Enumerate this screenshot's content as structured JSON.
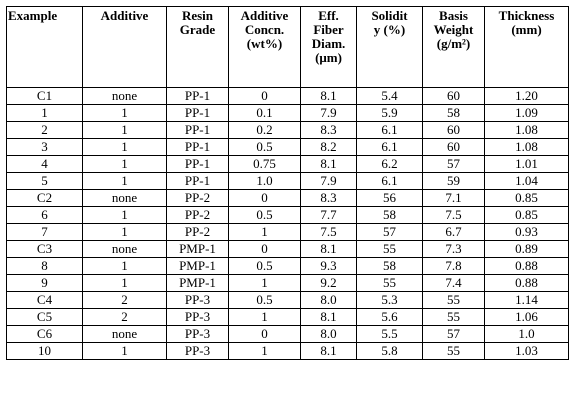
{
  "table": {
    "headers": [
      [
        "Example"
      ],
      [
        "Additive"
      ],
      [
        "Resin",
        "Grade"
      ],
      [
        "Additive",
        "Concn.",
        "(wt%)"
      ],
      [
        "Eff.",
        "Fiber",
        "Diam.",
        "(μm)"
      ],
      [
        "Solidit",
        "y (%)"
      ],
      [
        "Basis",
        "Weight",
        "(g/m²)"
      ],
      [
        "Thickness",
        "(mm)"
      ]
    ],
    "rows": [
      [
        "C1",
        "none",
        "PP-1",
        "0",
        "8.1",
        "5.4",
        "60",
        "1.20"
      ],
      [
        "1",
        "1",
        "PP-1",
        "0.1",
        "7.9",
        "5.9",
        "58",
        "1.09"
      ],
      [
        "2",
        "1",
        "PP-1",
        "0.2",
        "8.3",
        "6.1",
        "60",
        "1.08"
      ],
      [
        "3",
        "1",
        "PP-1",
        "0.5",
        "8.2",
        "6.1",
        "60",
        "1.08"
      ],
      [
        "4",
        "1",
        "PP-1",
        "0.75",
        "8.1",
        "6.2",
        "57",
        "1.01"
      ],
      [
        "5",
        "1",
        "PP-1",
        "1.0",
        "7.9",
        "6.1",
        "59",
        "1.04"
      ],
      [
        "C2",
        "none",
        "PP-2",
        "0",
        "8.3",
        "56",
        "7.1",
        "0.85"
      ],
      [
        "6",
        "1",
        "PP-2",
        "0.5",
        "7.7",
        "58",
        "7.5",
        "0.85"
      ],
      [
        "7",
        "1",
        "PP-2",
        "1",
        "7.5",
        "57",
        "6.7",
        "0.93"
      ],
      [
        "C3",
        "none",
        "PMP-1",
        "0",
        "8.1",
        "55",
        "7.3",
        "0.89"
      ],
      [
        "8",
        "1",
        "PMP-1",
        "0.5",
        "9.3",
        "58",
        "7.8",
        "0.88"
      ],
      [
        "9",
        "1",
        "PMP-1",
        "1",
        "9.2",
        "55",
        "7.4",
        "0.88"
      ],
      [
        "C4",
        "2",
        "PP-3",
        "0.5",
        "8.0",
        "5.3",
        "55",
        "1.14"
      ],
      [
        "C5",
        "2",
        "PP-3",
        "1",
        "8.1",
        "5.6",
        "55",
        "1.06"
      ],
      [
        "C6",
        "none",
        "PP-3",
        "0",
        "8.0",
        "5.5",
        "57",
        "1.0"
      ],
      [
        "10",
        "1",
        "PP-3",
        "1",
        "8.1",
        "5.8",
        "55",
        "1.03"
      ]
    ]
  }
}
